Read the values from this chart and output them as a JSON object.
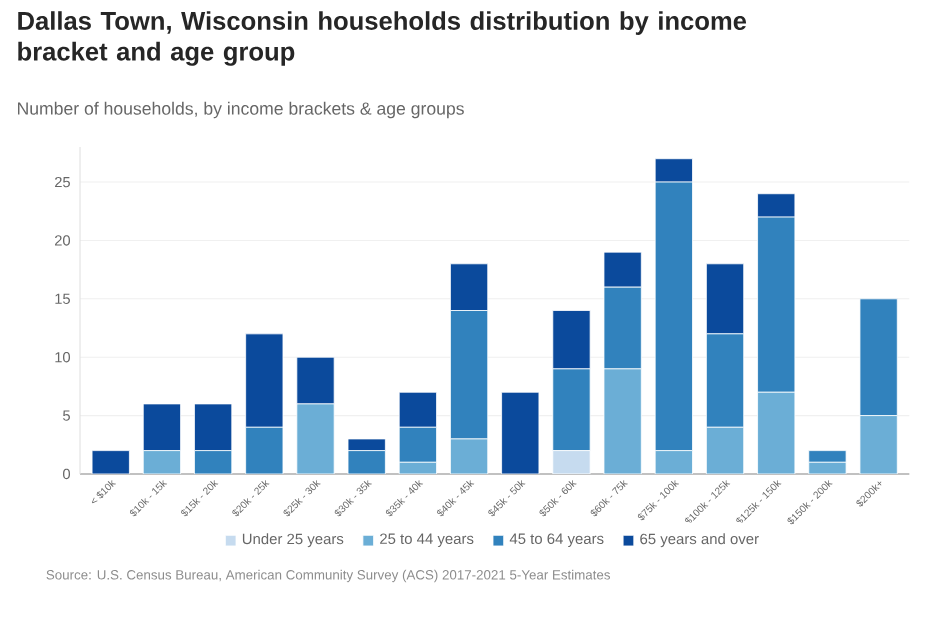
{
  "chart_data": {
    "type": "bar",
    "stacked": true,
    "title": "Dallas Town, Wisconsin households distribution by income bracket and age group",
    "subtitle": "Number of households, by income brackets & age groups",
    "categories": [
      "< $10k",
      "$10k - 15k",
      "$15k - 20k",
      "$20k - 25k",
      "$25k - 30k",
      "$30k - 35k",
      "$35k - 40k",
      "$40k - 45k",
      "$45k - 50k",
      "$50k - 60k",
      "$60k - 75k",
      "$75k - 100k",
      "$100k - 125k",
      "$125k - 150k",
      "$150k - 200k",
      "$200k+"
    ],
    "series": [
      {
        "name": "Under 25 years",
        "color": "#c6dbef",
        "values": [
          0,
          0,
          0,
          0,
          0,
          0,
          0,
          0,
          0,
          2,
          0,
          0,
          0,
          0,
          0,
          0
        ]
      },
      {
        "name": "25 to 44 years",
        "color": "#6baed6",
        "values": [
          0,
          2,
          0,
          0,
          6,
          0,
          1,
          3,
          0,
          0,
          9,
          2,
          4,
          7,
          1,
          5
        ]
      },
      {
        "name": "45 to 64 years",
        "color": "#3182bd",
        "values": [
          0,
          0,
          2,
          4,
          0,
          2,
          3,
          11,
          0,
          7,
          7,
          23,
          8,
          15,
          1,
          10
        ]
      },
      {
        "name": "65 years and over",
        "color": "#0b4a9c",
        "values": [
          2,
          4,
          4,
          8,
          4,
          1,
          3,
          4,
          7,
          5,
          3,
          2,
          6,
          2,
          0,
          0
        ]
      }
    ],
    "ylim": [
      0,
      28
    ],
    "yticks": [
      0,
      5,
      10,
      15,
      20,
      25
    ],
    "grid": "y",
    "legend": "bottom",
    "annotations": [
      "Source: U.S. Census Bureau, American Community Survey (ACS) 2017-2021 5-Year Estimates"
    ]
  }
}
